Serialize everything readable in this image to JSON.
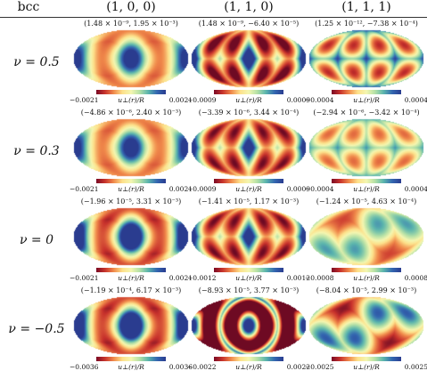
{
  "figure": {
    "corner_label": "bcc",
    "columns": [
      "(1, 0, 0)",
      "(1, 1, 0)",
      "(1, 1, 1)"
    ],
    "colorbar_label": "u⊥(r)/R",
    "rows": [
      {
        "label": "ν = 0.5",
        "panels": [
          {
            "range": "(1.48 × 10⁻⁹, 1.95 × 10⁻³)",
            "min": "−0.0021",
            "max": "0.0021",
            "pattern": "square-center",
            "intensity": 0.45
          },
          {
            "range": "(1.48 × 10⁻⁹, −6.40 × 10⁻⁵)",
            "min": "−0.0009",
            "max": "0.0009",
            "pattern": "lattice-110",
            "intensity": 0.6
          },
          {
            "range": "(1.25 × 10⁻¹², −7.38 × 10⁻⁴)",
            "min": "−0.0004",
            "max": "0.0004",
            "pattern": "trefoil",
            "intensity": 0.85
          }
        ]
      },
      {
        "label": "ν = 0.3",
        "panels": [
          {
            "range": "(−4.86 × 10⁻⁶, 2.40 × 10⁻³)",
            "min": "−0.0021",
            "max": "0.0021",
            "pattern": "square-center",
            "intensity": 0.45
          },
          {
            "range": "(−3.39 × 10⁻⁶, 3.44 × 10⁻⁴)",
            "min": "−0.0009",
            "max": "0.0009",
            "pattern": "lattice-110",
            "intensity": 0.45
          },
          {
            "range": "(−2.94 × 10⁻⁶, −3.42 × 10⁻⁴)",
            "min": "−0.0004",
            "max": "0.0004",
            "pattern": "trefoil",
            "intensity": 0.4
          }
        ]
      },
      {
        "label": "ν = 0",
        "panels": [
          {
            "range": "(−1.96 × 10⁻⁵, 3.31 × 10⁻³)",
            "min": "−0.0021",
            "max": "0.0021",
            "pattern": "square-center",
            "intensity": 0.85
          },
          {
            "range": "(−1.41 × 10⁻⁵, 1.17 × 10⁻³)",
            "min": "−0.0012",
            "max": "0.0012",
            "pattern": "lattice-110",
            "intensity": 0.45
          },
          {
            "range": "(−1.24 × 10⁻⁵, 4.63 × 10⁻⁴)",
            "min": "−0.0008",
            "max": "0.0008",
            "pattern": "triangle-center",
            "intensity": 0.3
          }
        ]
      },
      {
        "label": "ν = −0.5",
        "panels": [
          {
            "range": "(−1.19 × 10⁻⁴, 6.17 × 10⁻³)",
            "min": "−0.0036",
            "max": "0.0036",
            "pattern": "square-center",
            "intensity": 0.9
          },
          {
            "range": "(−8.93 × 10⁻⁵, 3.77 × 10⁻³)",
            "min": "−0.0022",
            "max": "0.0022",
            "pattern": "ring-center",
            "intensity": 0.9
          },
          {
            "range": "(−8.04 × 10⁻⁵, 2.99 × 10⁻³)",
            "min": "−0.0025",
            "max": "0.0025",
            "pattern": "triangle-center",
            "intensity": 0.6
          }
        ]
      }
    ]
  }
}
